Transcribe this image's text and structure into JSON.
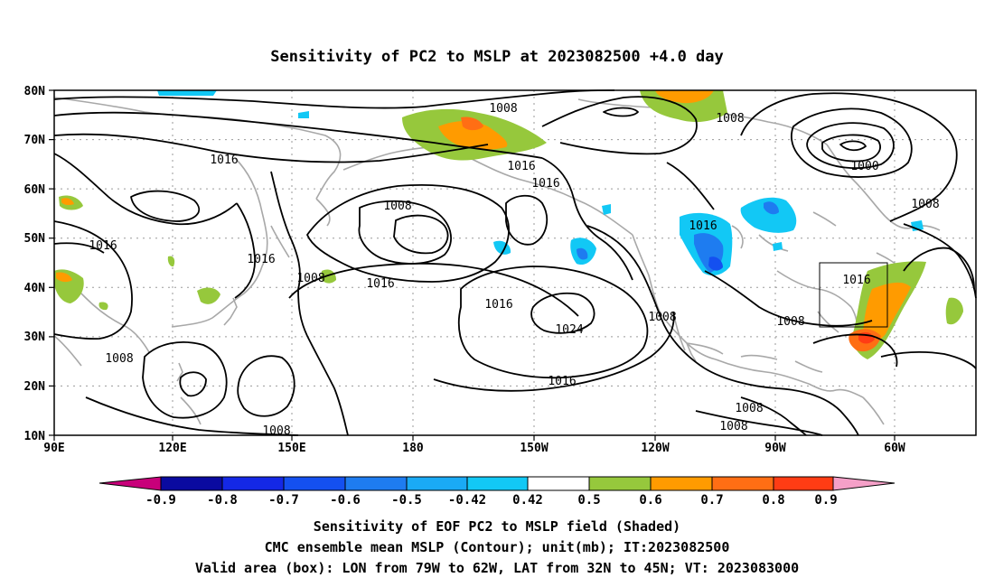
{
  "title": "Sensitivity of PC2 to MSLP at 2023082500 +4.0 day",
  "map": {
    "lon_labels": [
      "90E",
      "120E",
      "150E",
      "180",
      "150W",
      "120W",
      "90W",
      "60W"
    ],
    "lat_labels": [
      "80N",
      "70N",
      "60N",
      "50N",
      "40N",
      "30N",
      "20N",
      "10N"
    ],
    "contour_labels": [
      "1008",
      "1016",
      "1016",
      "1016",
      "1000",
      "1008",
      "1016",
      "1008",
      "1008",
      "1016",
      "1016",
      "1016",
      "1008",
      "1016",
      "1024",
      "1016",
      "1008",
      "1008",
      "1008",
      "1016",
      "1016",
      "1008",
      "1008",
      "1008"
    ],
    "valid_box": {
      "lon_from": "79W",
      "lon_to": "62W",
      "lat_from": "32N",
      "lat_to": "45N"
    }
  },
  "colorbar": {
    "labels": [
      "-0.9",
      "-0.8",
      "-0.7",
      "-0.6",
      "-0.5",
      "-0.42",
      "0.42",
      "0.5",
      "0.6",
      "0.7",
      "0.8",
      "0.9"
    ],
    "colors": [
      "#c8007a",
      "#0a0aa0",
      "#1428e6",
      "#1450f0",
      "#1e7cf0",
      "#1aaaf5",
      "#12c8f5",
      "#ffffff",
      "#96c83c",
      "#ff9b00",
      "#ff6e14",
      "#ff3c14",
      "#ff0a0a",
      "#f5a0c8"
    ]
  },
  "captions": [
    "Sensitivity of EOF PC2 to MSLP field (Shaded)",
    "CMC ensemble mean MSLP (Contour); unit(mb); IT:2023082500",
    "Valid area (box): LON from 79W to 62W, LAT from 32N to 45N; VT: 2023083000"
  ]
}
